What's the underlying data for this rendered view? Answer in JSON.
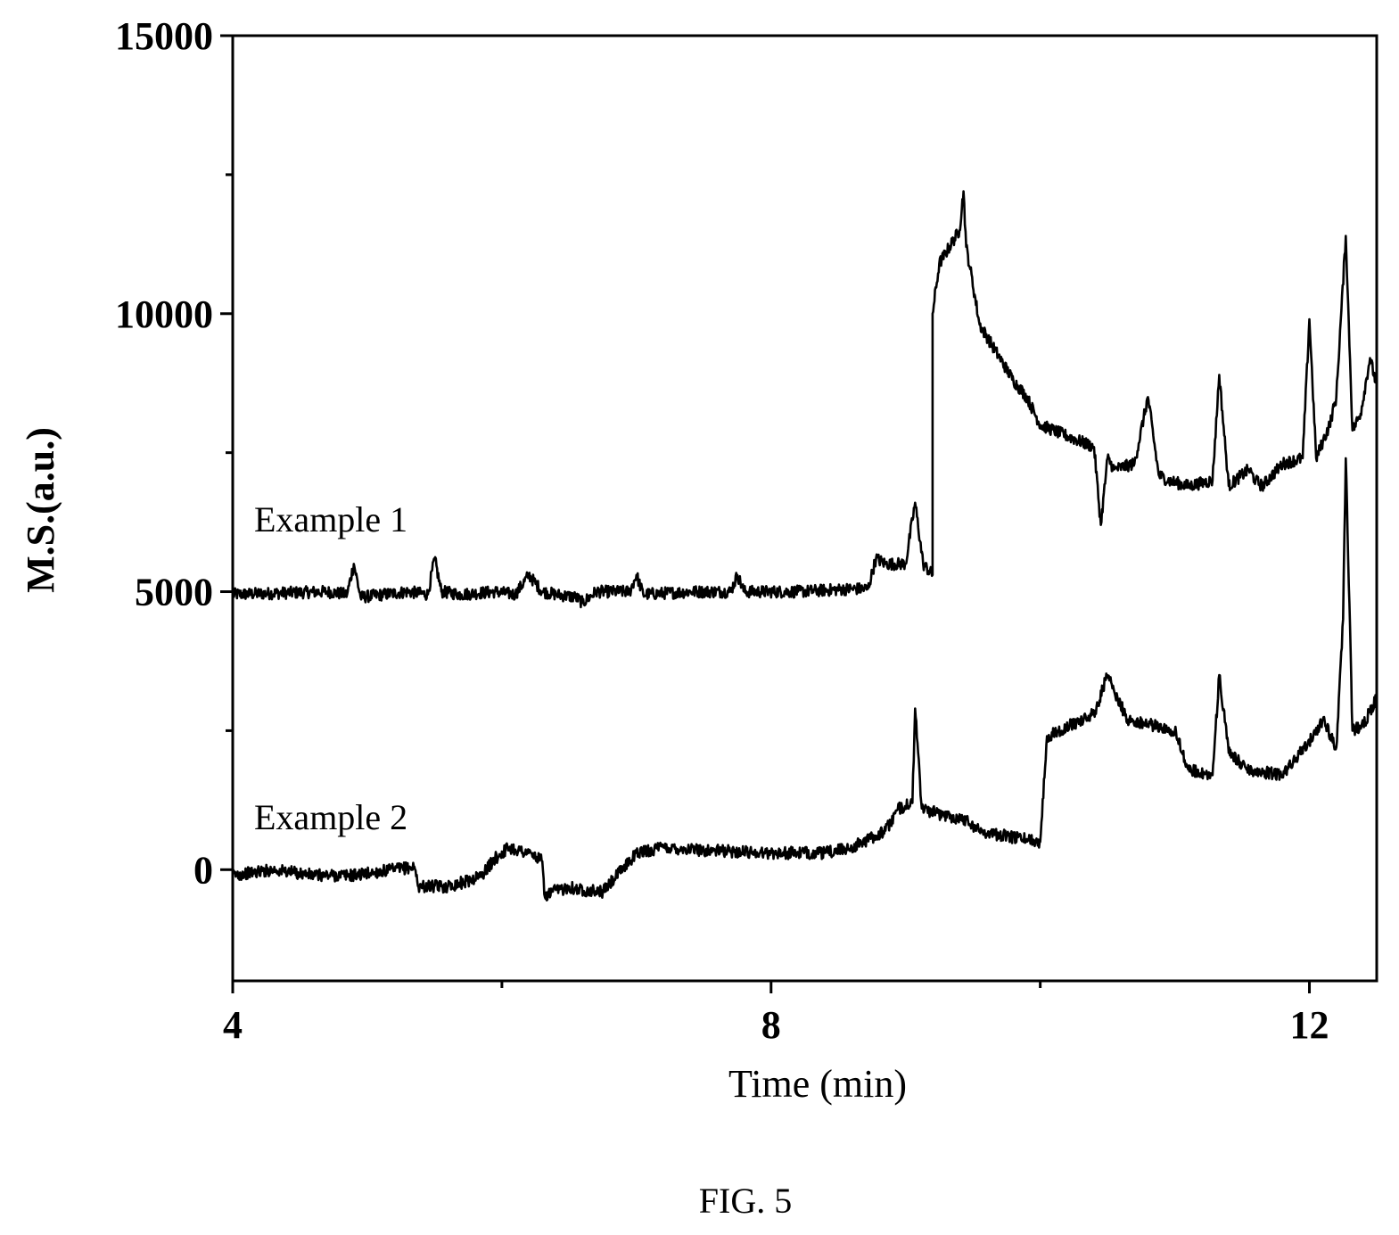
{
  "figure_caption": "FIG. 5",
  "chart_data": {
    "type": "line",
    "title": "",
    "xlabel": "Time (min)",
    "ylabel": "M.S.(a.u.)",
    "xlim": [
      4,
      12.5
    ],
    "ylim": [
      -2000,
      15000
    ],
    "x_ticks": [
      4,
      8,
      12
    ],
    "x_tick_labels": [
      "4",
      "8",
      "12"
    ],
    "x_minor_ticks": [
      6,
      10
    ],
    "y_ticks": [
      0,
      5000,
      10000,
      15000
    ],
    "y_tick_labels": [
      "0",
      "5000",
      "10000",
      "15000"
    ],
    "y_minor_ticks": [
      2500,
      7500,
      12500
    ],
    "grid": false,
    "legend": "none",
    "line_color": "#000000",
    "series": [
      {
        "name": "Example 1",
        "x": [
          4.0,
          4.7,
          4.85,
          4.9,
          4.95,
          5.3,
          5.45,
          5.5,
          5.55,
          5.7,
          5.95,
          6.1,
          6.2,
          6.3,
          6.4,
          6.55,
          6.6,
          6.7,
          6.95,
          7.0,
          7.05,
          7.4,
          7.7,
          7.75,
          7.8,
          8.2,
          8.6,
          8.72,
          8.78,
          8.85,
          9.0,
          9.07,
          9.13,
          9.2,
          9.2,
          9.25,
          9.4,
          9.43,
          9.45,
          9.48,
          9.55,
          9.7,
          9.8,
          9.9,
          10.0,
          10.2,
          10.4,
          10.45,
          10.5,
          10.55,
          10.7,
          10.8,
          10.88,
          10.95,
          11.1,
          11.28,
          11.33,
          11.4,
          11.55,
          11.6,
          11.65,
          11.8,
          11.95,
          12.0,
          12.05,
          12.1,
          12.15,
          12.2,
          12.27,
          12.32,
          12.38,
          12.45,
          12.5
        ],
        "y": [
          4950,
          5000,
          4950,
          5500,
          4900,
          5000,
          4950,
          5600,
          5000,
          4950,
          5000,
          4950,
          5300,
          5000,
          4950,
          4900,
          4800,
          5000,
          5000,
          5300,
          4950,
          5000,
          5000,
          5300,
          5000,
          5000,
          5050,
          5050,
          5600,
          5500,
          5500,
          6600,
          5500,
          5300,
          10000,
          10900,
          11500,
          12200,
          11200,
          10800,
          9800,
          9200,
          8800,
          8500,
          8000,
          7800,
          7600,
          6200,
          7400,
          7200,
          7300,
          8500,
          7100,
          7000,
          6900,
          7000,
          8900,
          6900,
          7200,
          7000,
          6900,
          7300,
          7400,
          9900,
          7400,
          7700,
          8000,
          8500,
          11400,
          7900,
          8200,
          9200,
          8700
        ]
      },
      {
        "name": "Example 2",
        "x": [
          4.0,
          4.3,
          4.6,
          4.9,
          5.2,
          5.35,
          5.38,
          5.42,
          5.6,
          5.75,
          5.85,
          5.95,
          6.05,
          6.2,
          6.3,
          6.32,
          6.37,
          6.45,
          6.5,
          6.55,
          6.75,
          7.0,
          7.2,
          7.5,
          8.0,
          8.4,
          8.6,
          8.85,
          8.95,
          9.05,
          9.07,
          9.12,
          9.25,
          9.45,
          9.55,
          9.75,
          9.9,
          10.0,
          10.05,
          10.4,
          10.5,
          10.55,
          10.65,
          11.0,
          11.1,
          11.28,
          11.33,
          11.4,
          11.55,
          11.8,
          12.0,
          12.1,
          12.2,
          12.25,
          12.27,
          12.32,
          12.4,
          12.5
        ],
        "y": [
          -100,
          0,
          -100,
          -100,
          0,
          50,
          -300,
          -300,
          -300,
          -200,
          -100,
          200,
          400,
          300,
          150,
          -500,
          -400,
          -350,
          -300,
          -350,
          -400,
          300,
          400,
          350,
          300,
          300,
          400,
          700,
          1100,
          1200,
          2900,
          1100,
          1000,
          900,
          700,
          600,
          550,
          500,
          2400,
          2800,
          3500,
          3200,
          2700,
          2500,
          1800,
          1700,
          3500,
          2100,
          1800,
          1700,
          2300,
          2700,
          2200,
          4500,
          7400,
          2500,
          2600,
          3100
        ]
      }
    ]
  }
}
